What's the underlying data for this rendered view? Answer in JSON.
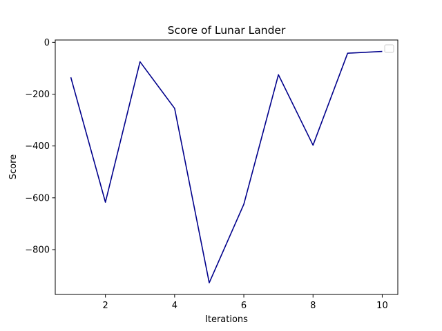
{
  "chart_data": {
    "type": "line",
    "title": "Score of Lunar Lander",
    "xlabel": "Iterations",
    "ylabel": "Score",
    "x": [
      1,
      2,
      3,
      4,
      5,
      6,
      7,
      8,
      9,
      10
    ],
    "series": [
      {
        "values": [
          -135,
          -617,
          -75,
          -255,
          -928,
          -625,
          -125,
          -397,
          -42,
          -35
        ],
        "color": "#00008b"
      }
    ],
    "xlim": [
      0.55,
      10.45
    ],
    "ylim": [
      -973,
      9
    ],
    "x_ticks": [
      2,
      4,
      6,
      8,
      10
    ],
    "x_tick_labels": [
      "2",
      "4",
      "6",
      "8",
      "10"
    ],
    "y_ticks": [
      0,
      -200,
      -400,
      -600,
      -800
    ],
    "y_tick_labels": [
      "0",
      "−200",
      "−400",
      "−600",
      "−800"
    ],
    "grid": false,
    "legend": {
      "placement": "top-right",
      "entries": []
    }
  }
}
